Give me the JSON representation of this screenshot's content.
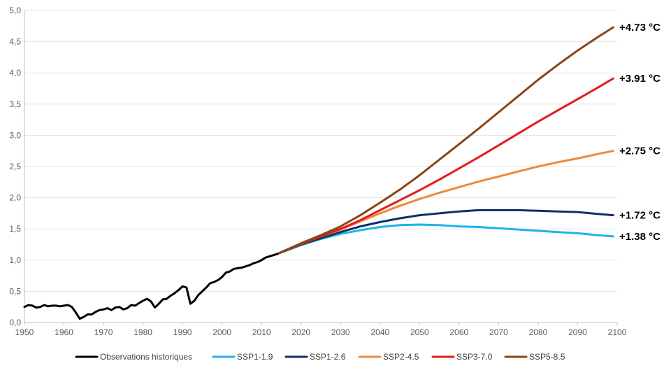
{
  "chart_data": {
    "type": "line",
    "title": "",
    "xlabel": "",
    "ylabel": "",
    "xlim": [
      1950,
      2100
    ],
    "ylim": [
      0,
      5
    ],
    "x_ticks": [
      "1950",
      "1960",
      "1970",
      "1980",
      "1990",
      "2000",
      "2010",
      "2020",
      "2030",
      "2040",
      "2050",
      "2060",
      "2070",
      "2080",
      "2090",
      "2100"
    ],
    "y_ticks": [
      "0,0",
      "0,5",
      "1,0",
      "1,5",
      "2,0",
      "2,5",
      "3,0",
      "3,5",
      "4,0",
      "4,5",
      "5,0"
    ],
    "grid": "horizontal",
    "legend_position": "bottom",
    "series": [
      {
        "name": "Observations historiques",
        "color": "#000000",
        "x": [
          1950,
          1951,
          1952,
          1953,
          1954,
          1955,
          1956,
          1957,
          1958,
          1959,
          1960,
          1961,
          1962,
          1963,
          1964,
          1965,
          1966,
          1967,
          1968,
          1969,
          1970,
          1971,
          1972,
          1973,
          1974,
          1975,
          1976,
          1977,
          1978,
          1979,
          1980,
          1981,
          1982,
          1983,
          1984,
          1985,
          1986,
          1987,
          1988,
          1989,
          1990,
          1991,
          1992,
          1993,
          1994,
          1995,
          1996,
          1997,
          1998,
          1999,
          2000,
          2001,
          2002,
          2003,
          2004,
          2005,
          2006,
          2007,
          2008,
          2009,
          2010,
          2011,
          2012,
          2013,
          2014
        ],
        "y": [
          0.25,
          0.28,
          0.27,
          0.24,
          0.25,
          0.28,
          0.26,
          0.27,
          0.27,
          0.26,
          0.27,
          0.28,
          0.25,
          0.16,
          0.06,
          0.09,
          0.13,
          0.13,
          0.17,
          0.2,
          0.21,
          0.23,
          0.2,
          0.24,
          0.25,
          0.21,
          0.23,
          0.28,
          0.27,
          0.31,
          0.35,
          0.38,
          0.34,
          0.24,
          0.3,
          0.37,
          0.38,
          0.43,
          0.47,
          0.52,
          0.58,
          0.56,
          0.3,
          0.35,
          0.44,
          0.5,
          0.56,
          0.63,
          0.65,
          0.68,
          0.73,
          0.8,
          0.82,
          0.86,
          0.87,
          0.88,
          0.9,
          0.92,
          0.95,
          0.97,
          1.0,
          1.04,
          1.06,
          1.08,
          1.1
        ]
      },
      {
        "name": "SSP1-1.9",
        "color": "#1eb4ea",
        "x": [
          2014,
          2020,
          2025,
          2030,
          2035,
          2040,
          2045,
          2050,
          2055,
          2060,
          2065,
          2070,
          2075,
          2080,
          2085,
          2090,
          2095,
          2099
        ],
        "y": [
          1.1,
          1.24,
          1.34,
          1.42,
          1.48,
          1.53,
          1.56,
          1.57,
          1.56,
          1.54,
          1.53,
          1.51,
          1.49,
          1.47,
          1.45,
          1.43,
          1.4,
          1.38
        ]
      },
      {
        "name": "SSP1-2.6",
        "color": "#0f2f6b",
        "x": [
          2014,
          2020,
          2025,
          2030,
          2035,
          2040,
          2045,
          2050,
          2055,
          2060,
          2065,
          2070,
          2075,
          2080,
          2085,
          2090,
          2095,
          2099
        ],
        "y": [
          1.1,
          1.25,
          1.35,
          1.45,
          1.54,
          1.61,
          1.67,
          1.72,
          1.75,
          1.78,
          1.8,
          1.8,
          1.8,
          1.79,
          1.78,
          1.77,
          1.74,
          1.72
        ]
      },
      {
        "name": "SSP2-4.5",
        "color": "#eb8a3c",
        "x": [
          2014,
          2020,
          2025,
          2030,
          2035,
          2040,
          2045,
          2050,
          2055,
          2060,
          2065,
          2070,
          2075,
          2080,
          2085,
          2090,
          2095,
          2099
        ],
        "y": [
          1.1,
          1.26,
          1.38,
          1.49,
          1.62,
          1.75,
          1.87,
          1.98,
          2.08,
          2.17,
          2.26,
          2.34,
          2.42,
          2.5,
          2.57,
          2.63,
          2.7,
          2.75
        ]
      },
      {
        "name": "SSP3-7.0",
        "color": "#e51b1b",
        "x": [
          2014,
          2020,
          2025,
          2030,
          2035,
          2040,
          2045,
          2050,
          2055,
          2060,
          2065,
          2070,
          2075,
          2080,
          2085,
          2090,
          2095,
          2099
        ],
        "y": [
          1.1,
          1.26,
          1.38,
          1.5,
          1.64,
          1.8,
          1.96,
          2.12,
          2.29,
          2.47,
          2.65,
          2.84,
          3.03,
          3.22,
          3.4,
          3.58,
          3.76,
          3.91
        ]
      },
      {
        "name": "SSP5-8.5",
        "color": "#8b4513",
        "x": [
          2014,
          2020,
          2025,
          2030,
          2035,
          2040,
          2045,
          2050,
          2055,
          2060,
          2065,
          2070,
          2075,
          2080,
          2085,
          2090,
          2095,
          2099
        ],
        "y": [
          1.1,
          1.27,
          1.4,
          1.54,
          1.72,
          1.92,
          2.13,
          2.36,
          2.61,
          2.86,
          3.11,
          3.37,
          3.63,
          3.89,
          4.13,
          4.36,
          4.57,
          4.73
        ]
      }
    ],
    "end_labels": [
      {
        "text": "+4.73 °C",
        "value": 4.73
      },
      {
        "text": "+3.91 °C",
        "value": 3.91
      },
      {
        "text": "+2.75 °C",
        "value": 2.75
      },
      {
        "text": "+1.72 °C",
        "value": 1.72
      },
      {
        "text": "+1.38 °C",
        "value": 1.38
      }
    ]
  }
}
